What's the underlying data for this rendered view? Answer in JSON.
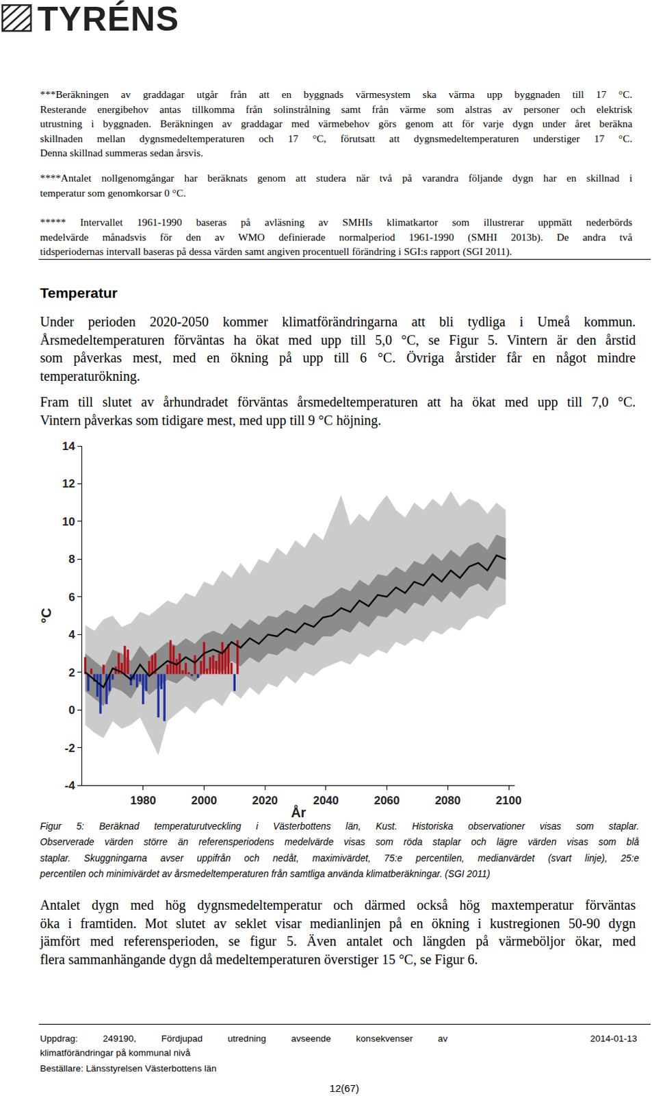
{
  "header": {
    "logo": "TYRÉNS"
  },
  "footnotes": [
    [
      "***Beräkningen av graddagar utgår från att en byggnads värmesystem ska värma upp byggnaden till 17 °C.",
      "Resterande energibehov antas tillkomma från solinstrålning samt från värme som alstras av personer och elektrisk",
      "utrustning i byggnaden. Beräkningen av graddagar med värmebehov görs genom att för varje dygn under året beräkna",
      "skillnaden mellan dygnsmedeltemperaturen och 17 °C, förutsatt att dygnsmedeltemperaturen understiger 17 °C.",
      "Denna skillnad summeras sedan årsvis."
    ],
    [
      "****Antalet nollgenomgångar har beräknats genom att studera när två på varandra följande dygn har en skillnad i",
      "temperatur som genomkorsar 0 °C."
    ],
    [
      "***** Intervallet 1961-1990 baseras på avläsning av SMHIs klimatkartor som illustrerar uppmätt nederbörds",
      "medelvärde månadsvis för den av WMO definierade normalperiod 1961-1990 (SMHI 2013b). De andra två",
      "tidsperiodernas intervall baseras på dessa värden samt angiven procentuell förändring i SGI:s rapport (SGI 2011)."
    ]
  ],
  "section": {
    "heading": "Temperatur",
    "paragraphs": [
      [
        "Under perioden 2020-2050 kommer klimatförändringarna att bli tydliga i Umeå kommun.",
        "Årsmedeltemperaturen förväntas ha ökat med upp till 5,0 °C, se Figur 5. Vintern är den årstid",
        "som påverkas mest, med en ökning på upp till 6 °C. Övriga årstider får en något mindre",
        "temperaturökning."
      ],
      [
        "Fram till slutet av århundradet förväntas årsmedeltemperaturen att ha ökat med upp till 7,0 °C.",
        "Vintern påverkas som tidigare mest, med upp till 9 °C höjning."
      ]
    ],
    "caption": [
      "Figur 5: Beräknad temperaturutveckling i Västerbottens län, Kust. Historiska observationer visas som staplar.",
      "Observerade värden större än referensperiodens medelvärde visas som röda staplar och lägre värden visas som blå",
      "staplar. Skuggningarna avser uppifrån och nedåt, maximivärdet, 75:e percentilen, medianvärdet (svart linje), 25:e",
      "percentilen och minimivärdet av årsmedeltemperaturen från samtliga använda klimatberäkningar. (SGI 2011)"
    ],
    "after_figure": [
      [
        "Antalet dygn med hög dygnsmedeltemperatur och därmed också hög maxtemperatur förväntas",
        "öka i framtiden. Mot slutet av seklet visar medianlinjen på en ökning i kustregionen 50-90 dygn",
        "jämfört med referensperioden, se figur 5. Även antalet och längden på värmeböljor ökar, med",
        "flera sammanhängande dygn då medeltemperaturen överstiger 15 °C, se Figur 6."
      ]
    ]
  },
  "chart_data": {
    "type": "line",
    "x_label": "År",
    "y_label": "°C",
    "xlim": [
      1960,
      2102
    ],
    "xticks": [
      1980,
      2000,
      2020,
      2040,
      2060,
      2080,
      2100
    ],
    "ylim": [
      -4,
      14
    ],
    "yticks": [
      -4,
      -2,
      0,
      2,
      4,
      6,
      8,
      10,
      12,
      14
    ],
    "grid": false,
    "x": [
      1961,
      1964,
      1967,
      1970,
      1973,
      1976,
      1979,
      1982,
      1985,
      1988,
      1991,
      1994,
      1997,
      2000,
      2003,
      2006,
      2009,
      2012,
      2015,
      2018,
      2021,
      2024,
      2027,
      2030,
      2033,
      2036,
      2039,
      2042,
      2045,
      2048,
      2051,
      2054,
      2057,
      2060,
      2063,
      2066,
      2069,
      2072,
      2075,
      2078,
      2081,
      2084,
      2087,
      2090,
      2093,
      2096,
      2099
    ],
    "minimum": {
      "values": [
        -0.8,
        -1.2,
        -1.5,
        -0.6,
        -1.0,
        -0.8,
        -0.4,
        -1.4,
        -2.4,
        -0.6,
        -0.2,
        0.2,
        -0.2,
        0.4,
        0.6,
        0.2,
        1.0,
        0.6,
        1.2,
        0.8,
        1.4,
        1.2,
        1.8,
        1.4,
        2.0,
        1.8,
        2.2,
        2.4,
        2.6,
        2.4,
        3.0,
        2.8,
        3.2,
        3.0,
        3.6,
        3.4,
        3.8,
        3.6,
        4.2,
        4.0,
        4.4,
        4.2,
        4.8,
        5.0,
        4.8,
        5.4,
        5.6
      ]
    },
    "maximum": {
      "color": "#cbcbcb",
      "values": [
        4.5,
        4.2,
        4.8,
        5.0,
        4.4,
        4.6,
        5.2,
        5.0,
        5.4,
        5.8,
        5.6,
        6.2,
        6.0,
        6.8,
        6.6,
        7.4,
        7.0,
        7.8,
        7.2,
        8.0,
        7.8,
        8.6,
        8.2,
        9.0,
        8.6,
        9.4,
        9.0,
        10.2,
        11.4,
        9.8,
        10.4,
        10.0,
        10.8,
        11.4,
        10.6,
        10.2,
        11.0,
        10.6,
        11.2,
        10.8,
        11.6,
        10.8,
        11.2,
        11.0,
        10.4,
        11.0,
        10.6
      ]
    },
    "percentile_25": {
      "values": [
        1.0,
        0.6,
        0.2,
        1.2,
        1.0,
        0.6,
        1.4,
        0.8,
        1.2,
        1.6,
        1.4,
        1.8,
        1.5,
        2.0,
        2.2,
        2.0,
        2.6,
        2.3,
        2.8,
        2.5,
        3.0,
        2.9,
        3.3,
        3.1,
        3.6,
        3.4,
        3.9,
        3.9,
        4.3,
        4.1,
        4.7,
        4.4,
        5.0,
        4.9,
        5.4,
        5.1,
        5.7,
        5.5,
        6.1,
        5.7,
        6.3,
        5.9,
        6.5,
        6.7,
        6.3,
        7.1,
        6.9
      ]
    },
    "percentile_75": {
      "color": "#8c8c8c",
      "values": [
        3.0,
        2.6,
        2.2,
        3.2,
        3.0,
        2.6,
        3.4,
        2.8,
        3.2,
        3.6,
        3.4,
        3.8,
        3.5,
        4.0,
        4.2,
        4.0,
        4.6,
        4.3,
        4.8,
        4.5,
        5.0,
        4.9,
        5.3,
        5.1,
        5.6,
        5.4,
        5.9,
        6.1,
        6.5,
        6.3,
        6.9,
        6.6,
        7.2,
        7.1,
        7.6,
        7.3,
        7.9,
        7.7,
        8.3,
        7.9,
        8.5,
        8.1,
        8.7,
        8.9,
        8.5,
        9.3,
        9.1
      ]
    },
    "median": {
      "color": "#000000",
      "values": [
        2.0,
        1.6,
        1.2,
        2.2,
        2.0,
        1.6,
        2.4,
        1.8,
        2.2,
        2.6,
        2.4,
        2.8,
        2.5,
        3.0,
        3.2,
        3.0,
        3.6,
        3.3,
        3.8,
        3.5,
        4.0,
        3.9,
        4.3,
        4.1,
        4.6,
        4.4,
        4.9,
        5.0,
        5.4,
        5.2,
        5.8,
        5.5,
        6.1,
        6.0,
        6.5,
        6.2,
        6.8,
        6.6,
        7.2,
        6.8,
        7.4,
        7.0,
        7.6,
        7.8,
        7.4,
        8.2,
        8.0
      ]
    },
    "observations": {
      "type": "bar",
      "base": 1.9,
      "x": [
        1961,
        1962,
        1963,
        1964,
        1965,
        1966,
        1967,
        1968,
        1969,
        1970,
        1971,
        1972,
        1973,
        1974,
        1975,
        1976,
        1977,
        1978,
        1979,
        1980,
        1981,
        1982,
        1983,
        1984,
        1985,
        1986,
        1987,
        1988,
        1989,
        1990,
        1991,
        1992,
        1993,
        1994,
        1995,
        1996,
        1997,
        1998,
        1999,
        2000,
        2001,
        2002,
        2003,
        2004,
        2005,
        2006,
        2007,
        2008,
        2009,
        2010,
        2011
      ],
      "values": [
        2.8,
        1.0,
        2.2,
        1.5,
        0.7,
        -0.2,
        2.4,
        0.3,
        1.0,
        1.6,
        2.3,
        3.0,
        2.5,
        3.4,
        3.2,
        1.3,
        1.6,
        1.2,
        1.5,
        0.3,
        1.0,
        2.6,
        2.9,
        3.0,
        -0.4,
        1.1,
        -0.6,
        2.4,
        3.7,
        3.4,
        2.7,
        3.0,
        2.1,
        2.5,
        2.0,
        1.8,
        2.9,
        1.7,
        2.6,
        3.6,
        2.2,
        2.8,
        2.9,
        2.6,
        3.0,
        3.6,
        3.2,
        3.5,
        2.5,
        1.0,
        3.7
      ],
      "colors": [
        "#b3121b",
        "#1c2fa3",
        "#b3121b",
        "#1c2fa3",
        "#1c2fa3",
        "#1c2fa3",
        "#b3121b",
        "#1c2fa3",
        "#1c2fa3",
        "#1c2fa3",
        "#b3121b",
        "#b3121b",
        "#b3121b",
        "#b3121b",
        "#b3121b",
        "#1c2fa3",
        "#1c2fa3",
        "#1c2fa3",
        "#1c2fa3",
        "#1c2fa3",
        "#1c2fa3",
        "#b3121b",
        "#b3121b",
        "#b3121b",
        "#1c2fa3",
        "#1c2fa3",
        "#1c2fa3",
        "#b3121b",
        "#b3121b",
        "#b3121b",
        "#b3121b",
        "#b3121b",
        "#b3121b",
        "#b3121b",
        "#b3121b",
        "#1c2fa3",
        "#b3121b",
        "#1c2fa3",
        "#b3121b",
        "#b3121b",
        "#b3121b",
        "#b3121b",
        "#b3121b",
        "#b3121b",
        "#b3121b",
        "#b3121b",
        "#b3121b",
        "#b3121b",
        "#b3121b",
        "#1c2fa3",
        "#b3121b"
      ]
    }
  },
  "footer": {
    "left_lines": [
      "Uppdrag: 249190, Fördjupad utredning avseende konsekvenser av",
      "klimatförändringar på kommunal nivå",
      "Beställare: Länsstyrelsen Västerbottens län"
    ],
    "date": "2014-01-13",
    "page": "12(67)"
  }
}
